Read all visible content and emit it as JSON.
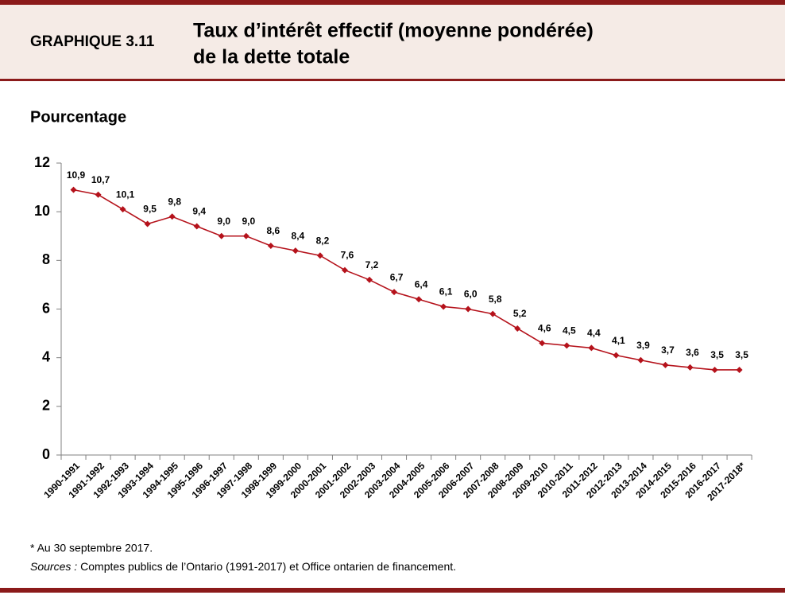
{
  "header": {
    "label": "GRAPHIQUE 3.11",
    "title": [
      "Taux d’intérêt effectif (moyenne pondérée)",
      "de la dette totale"
    ]
  },
  "chart_data": {
    "type": "line",
    "y_label": "Pourcentage",
    "categories": [
      "1990-1991",
      "1991-1992",
      "1992-1993",
      "1993-1994",
      "1994-1995",
      "1995-1996",
      "1996-1997",
      "1997-1998",
      "1998-1999",
      "1999-2000",
      "2000-2001",
      "2001-2002",
      "2002-2003",
      "2003-2004",
      "2004-2005",
      "2005-2006",
      "2006-2007",
      "2007-2008",
      "2008-2009",
      "2009-2010",
      "2010-2011",
      "2011-2012",
      "2012-2013",
      "2013-2014",
      "2014-2015",
      "2015-2016",
      "2016-2017",
      "2017-2018*"
    ],
    "values": [
      10.9,
      10.7,
      10.1,
      9.5,
      9.8,
      9.4,
      9.0,
      9.0,
      8.6,
      8.4,
      8.2,
      7.6,
      7.2,
      6.7,
      6.4,
      6.1,
      6.0,
      5.8,
      5.2,
      4.6,
      4.5,
      4.4,
      4.1,
      3.9,
      3.7,
      3.6,
      3.5,
      3.5
    ],
    "value_labels": [
      "10,9",
      "10,7",
      "10,1",
      "9,5",
      "9,8",
      "9,4",
      "9,0",
      "9,0",
      "8,6",
      "8,4",
      "8,2",
      "7,6",
      "7,2",
      "6,7",
      "6,4",
      "6,1",
      "6,0",
      "5,8",
      "5,2",
      "4,6",
      "4,5",
      "4,4",
      "4,1",
      "3,9",
      "3,7",
      "3,6",
      "3,5",
      "3,5"
    ],
    "color": "#b5121b",
    "ylim": [
      0,
      12
    ],
    "yticks": [
      0,
      2,
      4,
      6,
      8,
      10,
      12
    ],
    "grid": false
  },
  "notes": {
    "footnote": "* Au 30 septembre 2017.",
    "sources_label": "Sources :",
    "sources": "Comptes publics de l’Ontario (1991-2017) et Office ontarien de financement."
  }
}
